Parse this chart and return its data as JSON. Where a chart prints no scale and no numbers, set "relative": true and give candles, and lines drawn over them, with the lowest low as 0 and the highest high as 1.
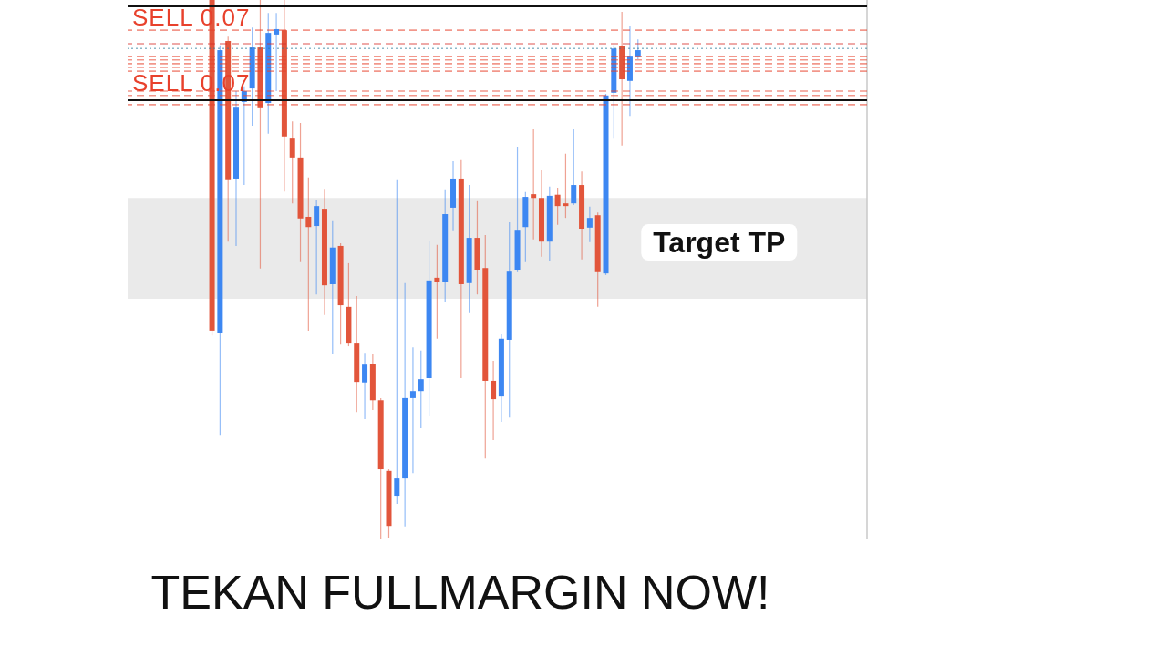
{
  "chart_data": {
    "type": "candlestick",
    "title": "TEKAN FULLMARGIN NOW!",
    "relative": true,
    "categories": [
      null,
      null,
      null,
      null,
      null,
      null,
      null,
      null,
      null,
      null,
      null,
      null,
      null,
      null,
      null,
      null,
      null,
      null,
      null,
      null,
      null,
      null,
      null,
      null,
      null,
      null,
      null,
      null,
      null,
      null,
      null,
      null,
      null,
      null,
      null,
      null,
      null,
      null,
      null,
      null,
      null,
      null,
      null,
      null,
      null,
      null,
      null,
      null,
      null,
      null,
      null,
      null,
      null,
      null,
      null,
      null,
      null,
      null,
      null,
      null,
      null,
      null,
      null,
      null,
      null,
      null,
      null,
      null,
      null,
      null,
      null,
      null,
      null,
      null,
      null,
      null,
      null,
      null,
      null,
      null,
      null,
      null,
      null,
      null,
      null,
      null,
      null,
      null,
      null,
      null,
      null,
      null
    ],
    "ohlc": [
      null,
      null,
      null,
      null,
      null,
      null,
      null,
      null,
      null,
      null,
      [
        1,
        1,
        0.378,
        0.387
      ],
      [
        0.383,
        0.916,
        0.194,
        0.907
      ],
      [
        0.924,
        0.932,
        0.552,
        0.666
      ],
      [
        0.669,
        0.831,
        0.544,
        0.802
      ],
      [
        0.811,
        0.84,
        0.657,
        0.831
      ],
      [
        0.836,
        0.949,
        0.767,
        0.912
      ],
      [
        0.912,
        1,
        0.502,
        0.801
      ],
      [
        0.809,
        0.976,
        0.752,
        0.939
      ],
      [
        0.936,
        0.976,
        0.831,
        0.946
      ],
      [
        0.944,
        1,
        0.645,
        0.747
      ],
      [
        0.743,
        0.775,
        0.623,
        0.708
      ],
      [
        0.708,
        0.772,
        0.514,
        0.595
      ],
      [
        0.598,
        0.671,
        0.387,
        0.579
      ],
      [
        0.581,
        0.63,
        0.454,
        0.618
      ],
      [
        0.613,
        0.65,
        0.416,
        0.471
      ],
      [
        0.473,
        0.59,
        0.343,
        0.541
      ],
      [
        0.544,
        0.549,
        0.361,
        0.434
      ],
      [
        0.431,
        0.512,
        0.358,
        0.363
      ],
      [
        0.363,
        0.451,
        0.236,
        0.292
      ],
      [
        0.291,
        0.346,
        0.223,
        0.324
      ],
      [
        0.326,
        0.343,
        0.24,
        0.258
      ],
      [
        0.258,
        0.262,
        0,
        0.13
      ],
      [
        0.127,
        0.13,
        0.003,
        0.025
      ],
      [
        0.081,
        0.666,
        0.066,
        0.113
      ],
      [
        0.113,
        0.475,
        0.024,
        0.262
      ],
      [
        0.262,
        0.356,
        0.123,
        0.275
      ],
      [
        0.275,
        0.35,
        0.206,
        0.297
      ],
      [
        0.299,
        0.554,
        0.228,
        0.48
      ],
      [
        0.485,
        0.546,
        0.372,
        0.478
      ],
      [
        0.478,
        0.649,
        0.439,
        0.603
      ],
      [
        0.615,
        0.701,
        0.573,
        0.669
      ],
      [
        0.669,
        0.703,
        0.299,
        0.473
      ],
      [
        0.475,
        0.657,
        0.421,
        0.559
      ],
      [
        0.559,
        0.627,
        0.454,
        0.5
      ],
      [
        0.503,
        0.564,
        0.15,
        0.294
      ],
      [
        0.294,
        0.331,
        0.184,
        0.26
      ],
      [
        0.265,
        0.38,
        0.218,
        0.372
      ],
      [
        0.37,
        0.588,
        0.226,
        0.498
      ],
      [
        0.5,
        0.728,
        0.497,
        0.574
      ],
      [
        0.579,
        0.644,
        0.514,
        0.635
      ],
      [
        0.64,
        0.76,
        0.556,
        0.633
      ],
      [
        0.633,
        0.684,
        0.524,
        0.552
      ],
      [
        0.552,
        0.654,
        0.515,
        0.637
      ],
      [
        0.639,
        0.652,
        0.583,
        0.618
      ],
      [
        0.623,
        0.715,
        0.596,
        0.618
      ],
      [
        0.623,
        0.76,
        0.62,
        0.657
      ],
      [
        0.657,
        0.682,
        0.519,
        0.576
      ],
      [
        0.578,
        0.617,
        0.551,
        0.596
      ],
      [
        0.601,
        0.606,
        0.431,
        0.497
      ],
      [
        0.493,
        0.826,
        0.49,
        0.823
      ],
      [
        0.828,
        0.916,
        0.743,
        0.91
      ],
      [
        0.914,
        0.978,
        0.73,
        0.853
      ],
      [
        0.85,
        0.951,
        0.785,
        0.895
      ],
      [
        0.894,
        0.927,
        0.89,
        0.907
      ],
      null,
      null,
      null,
      null,
      null,
      null,
      null,
      null,
      null,
      null,
      null,
      null,
      null,
      null,
      null,
      null,
      null,
      null,
      null,
      null,
      null,
      null,
      null,
      null,
      null,
      null,
      null,
      null
    ],
    "colors": [
      null,
      null,
      null,
      null,
      null,
      null,
      null,
      null,
      null,
      null,
      "#e2553b",
      "#3d87f2",
      "#e2553b",
      "#3d87f2",
      "#3d87f2",
      "#3d87f2",
      "#e2553b",
      "#3d87f2",
      "#3d87f2",
      "#e2553b",
      "#e2553b",
      "#e2553b",
      "#e2553b",
      "#3d87f2",
      "#e2553b",
      "#3d87f2",
      "#e2553b",
      "#e2553b",
      "#e2553b",
      "#3d87f2",
      "#e2553b",
      "#e2553b",
      "#e2553b",
      "#3d87f2",
      "#3d87f2",
      "#3d87f2",
      "#3d87f2",
      "#3d87f2",
      "#e2553b",
      "#3d87f2",
      "#3d87f2",
      "#e2553b",
      "#3d87f2",
      "#e2553b",
      "#e2553b",
      "#e2553b",
      "#3d87f2",
      "#3d87f2",
      "#3d87f2",
      "#3d87f2",
      "#e2553b",
      "#e2553b",
      "#3d87f2",
      "#e2553b",
      "#e2553b",
      "#3d87f2",
      "#e2553b",
      "#3d87f2",
      "#e2553b",
      "#3d87f2",
      "#3d87f2",
      "#e2553b",
      "#3d87f2",
      "#3d87f2",
      null,
      null,
      null,
      null,
      null,
      null,
      null,
      null,
      null,
      null,
      null,
      null,
      null,
      null,
      null,
      null,
      null,
      null,
      null,
      null,
      null,
      null,
      null,
      null,
      null,
      null,
      null,
      null
    ],
    "ref_lines": [
      {
        "axis": "y",
        "value": 0.988,
        "color": "#111111",
        "line_style": "solid"
      },
      {
        "axis": "y",
        "value": 0.814,
        "color": "#111111",
        "line_style": "solid"
      },
      {
        "axis": "y",
        "value": 0.944,
        "label": "SELL 0.07",
        "color": "#e8412c",
        "line_style": "dashed"
      },
      {
        "axis": "y",
        "value": 0.895,
        "color": "#e8412c",
        "line_style": "dashed"
      },
      {
        "axis": "y",
        "value": 0.889,
        "color": "#e8412c",
        "line_style": "dashed"
      },
      {
        "axis": "y",
        "value": 0.882,
        "color": "#e8412c",
        "line_style": "dashed"
      },
      {
        "axis": "y",
        "value": 0.875,
        "color": "#e8412c",
        "line_style": "dashed"
      },
      {
        "axis": "y",
        "value": 0.868,
        "color": "#e8412c",
        "line_style": "dashed"
      },
      {
        "axis": "y",
        "value": 0.831,
        "color": "#e8412c",
        "line_style": "dashed"
      },
      {
        "axis": "y",
        "value": 0.823,
        "label": "SELL 0.07",
        "color": "#e8412c",
        "line_style": "dashed"
      },
      {
        "axis": "y",
        "value": 0.806,
        "color": "#e8412c",
        "line_style": "dashed"
      },
      {
        "axis": "y",
        "value": 0.919,
        "color": "#d9302a",
        "line_style": "dashed"
      },
      {
        "axis": "y",
        "value": 0.91,
        "color": "#2f7e9a",
        "line_style": "dotted"
      }
    ],
    "bands": [
      {
        "axis": "y",
        "from": 0.446,
        "to": 0.633,
        "label": "Target TP",
        "color": "#e8e8e8"
      }
    ]
  }
}
